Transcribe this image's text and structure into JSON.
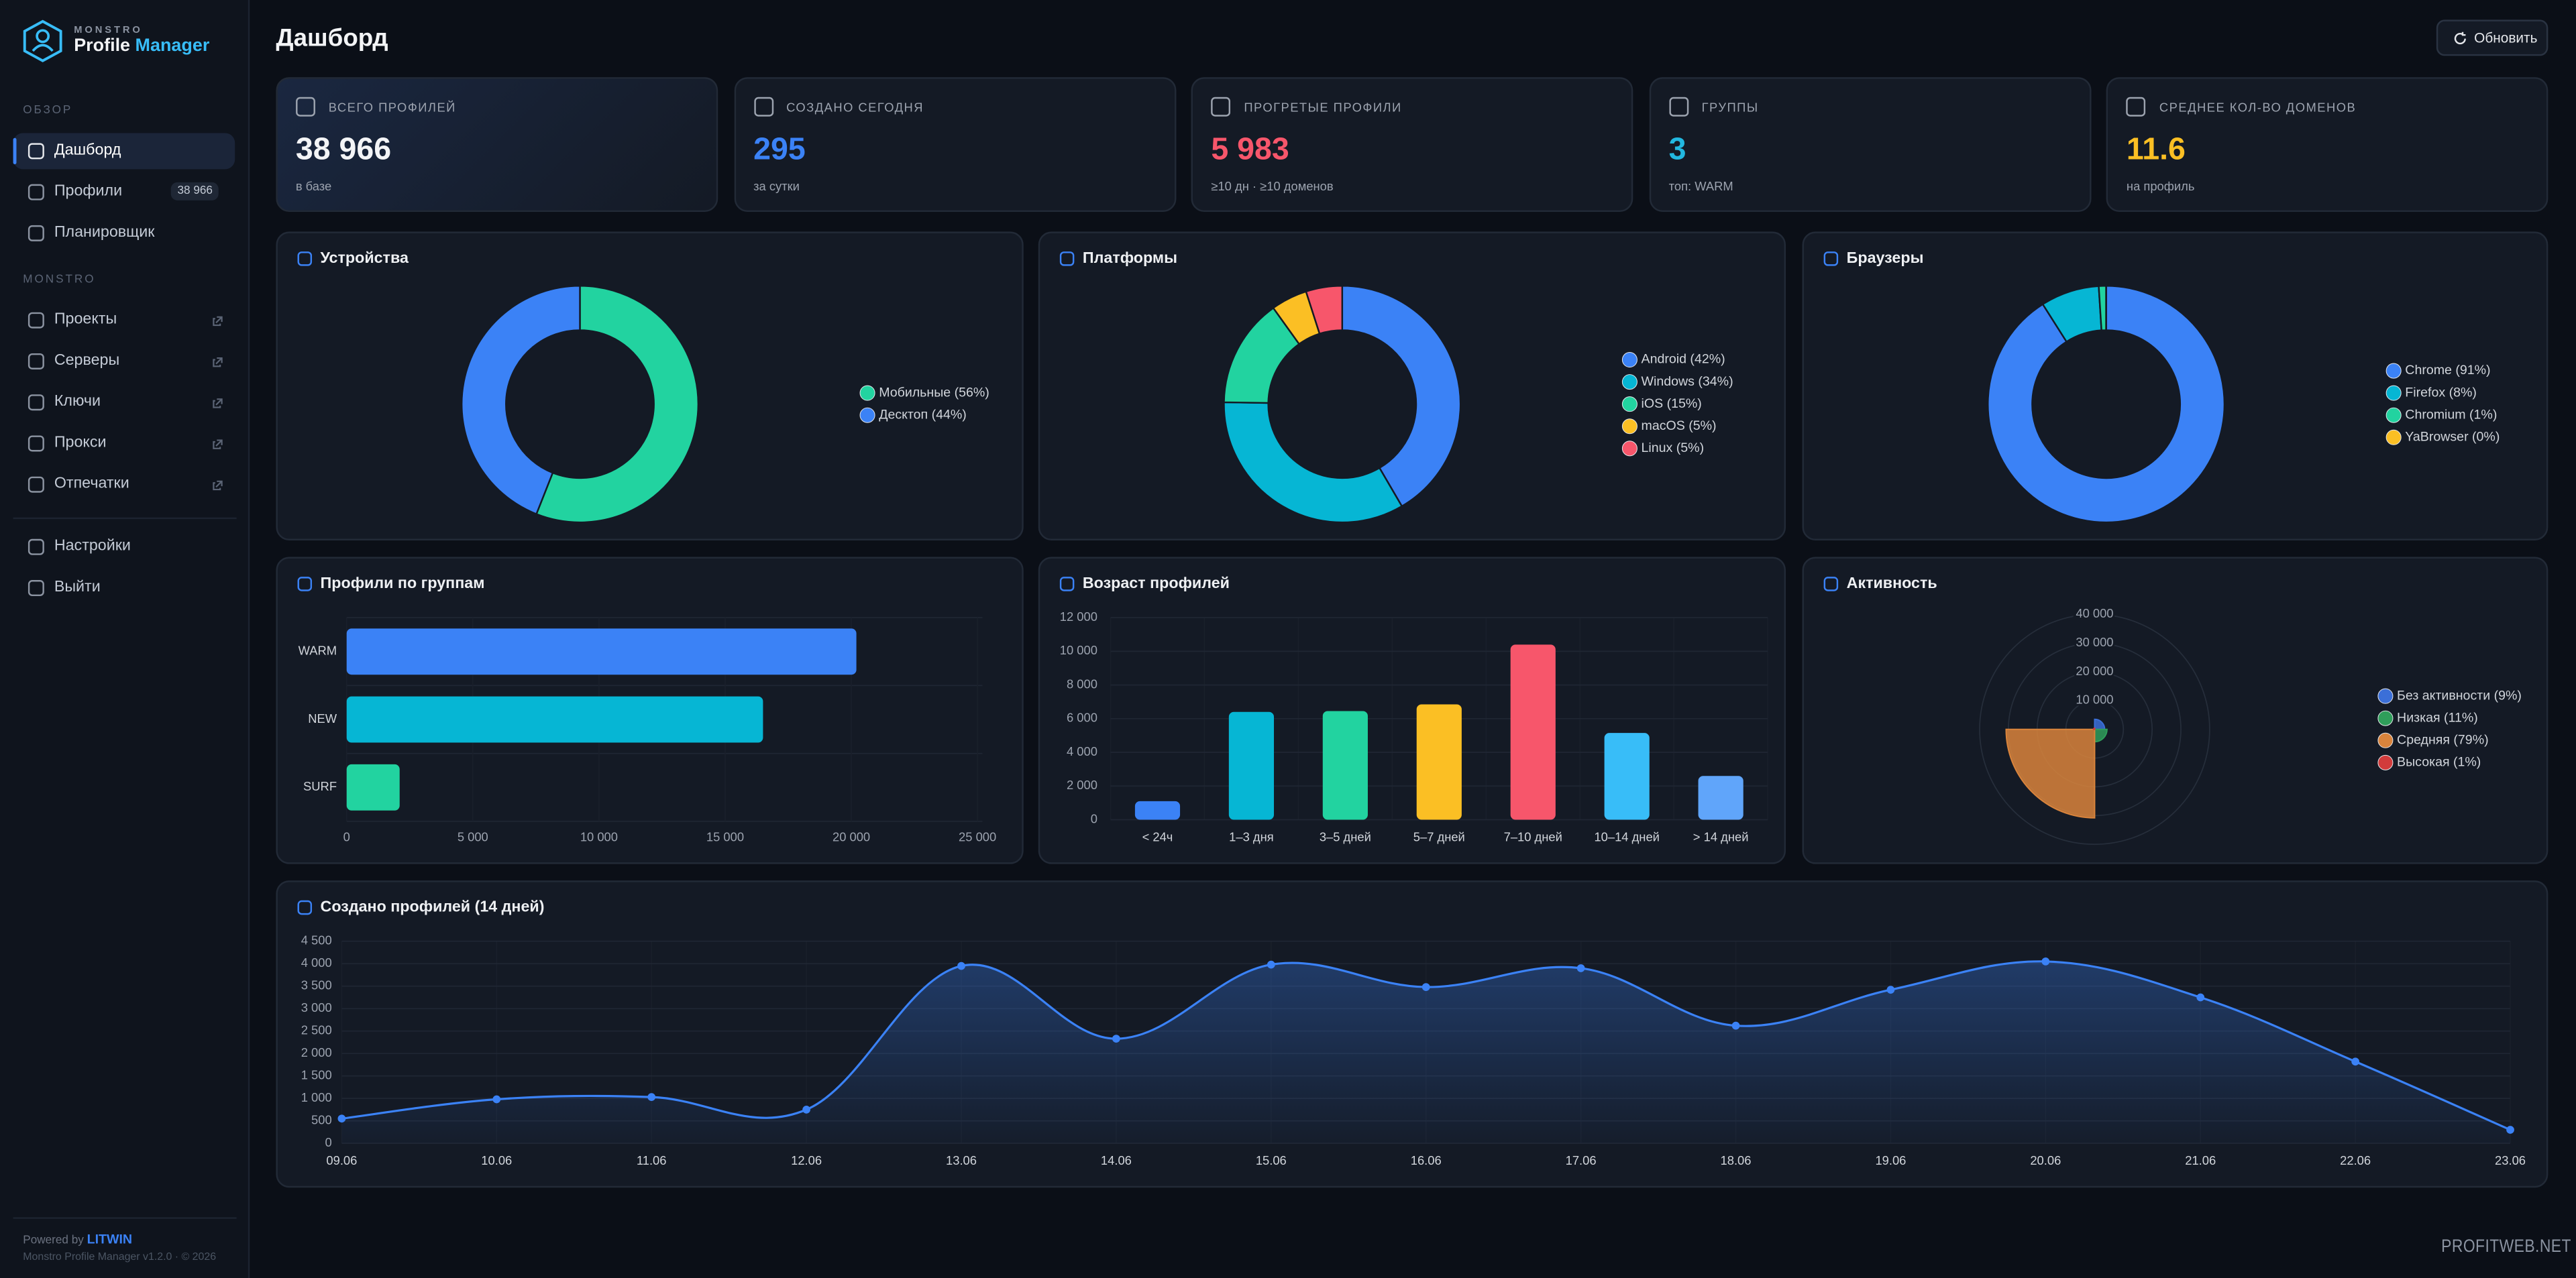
{
  "sidebar": {
    "brand_top": "MONSTRO",
    "brand_a": "Profile",
    "brand_b": "Manager",
    "sections": [
      {
        "title": "ОБЗОР",
        "items": [
          {
            "label": "Дашборд",
            "active": true
          },
          {
            "label": "Профили",
            "badge": "38 966"
          },
          {
            "label": "Планировщик"
          }
        ]
      },
      {
        "title": "MONSTRO",
        "items": [
          {
            "label": "Проекты",
            "external": true
          },
          {
            "label": "Серверы",
            "external": true
          },
          {
            "label": "Ключи",
            "external": true
          },
          {
            "label": "Прокси",
            "external": true
          },
          {
            "label": "Отпечатки",
            "external": true
          }
        ]
      },
      {
        "items": [
          {
            "label": "Настройки"
          },
          {
            "label": "Выйти"
          }
        ]
      }
    ],
    "footer": {
      "powered": "Powered by",
      "brand": "LITWIN",
      "version": "Monstro Profile Manager v1.2.0 · © 2026"
    }
  },
  "header": {
    "title": "Дашборд",
    "refresh": "Обновить"
  },
  "stats": [
    {
      "label": "ВСЕГО ПРОФИЛЕЙ",
      "value": "38 966",
      "sub": "в базе",
      "color": "#f3f4f6"
    },
    {
      "label": "СОЗДАНО СЕГОДНЯ",
      "value": "295",
      "sub": "за сутки",
      "color": "#3b82f6"
    },
    {
      "label": "ПРОГРЕТЫЕ ПРОФИЛИ",
      "value": "5 983",
      "sub": "≥10 дн · ≥10 доменов",
      "color": "#f7566b"
    },
    {
      "label": "ГРУППЫ",
      "value": "3",
      "sub": "топ: WARM",
      "color": "#22b8e0"
    },
    {
      "label": "СРЕДНЕЕ КОЛ-ВО ДОМЕНОВ",
      "value": "11.6",
      "sub": "на профиль",
      "color": "#fbbf24"
    }
  ],
  "chart_data": [
    {
      "type": "donut",
      "title": "Устройства",
      "categories": [
        "Мобильные (56%)",
        "Десктоп (44%)"
      ],
      "values": [
        56,
        44
      ],
      "colors": [
        "#22d3a0",
        "#3b82f6"
      ],
      "legend": "right"
    },
    {
      "type": "donut",
      "title": "Платформы",
      "categories": [
        "Android (42%)",
        "Windows (34%)",
        "iOS (15%)",
        "macOS (5%)",
        "Linux (5%)"
      ],
      "values": [
        42,
        34,
        15,
        5,
        5
      ],
      "colors": [
        "#3b82f6",
        "#06b6d4",
        "#22d3a0",
        "#fbbf24",
        "#f7566b"
      ],
      "legend": "right"
    },
    {
      "type": "donut",
      "title": "Браузеры",
      "categories": [
        "Chrome (91%)",
        "Firefox (8%)",
        "Chromium (1%)",
        "YaBrowser (0%)"
      ],
      "values": [
        91,
        8,
        1,
        0
      ],
      "colors": [
        "#3b82f6",
        "#06b6d4",
        "#22d3a0",
        "#fbbf24"
      ],
      "legend": "right"
    },
    {
      "type": "hbar",
      "title": "Профили по группам",
      "categories": [
        "WARM",
        "NEW",
        "SURF"
      ],
      "values": [
        20200,
        16500,
        2100
      ],
      "colors": [
        "#3b82f6",
        "#06b6d4",
        "#22d3a0"
      ],
      "xlim": [
        0,
        25000
      ],
      "xticks": [
        0,
        {
          "value": 5000,
          "label": "5 000"
        },
        {
          "value": 10000,
          "label": "10 000"
        },
        {
          "value": 15000,
          "label": "15 000"
        },
        {
          "value": 20000,
          "label": "20 000"
        },
        {
          "value": 25000,
          "label": "25 000"
        }
      ],
      "grid": true
    },
    {
      "type": "bar",
      "title": "Возраст профилей",
      "categories": [
        "< 24ч",
        "1–3 дня",
        "3–5 дней",
        "5–7 дней",
        "7–10 дней",
        "10–14 дней",
        "> 14 дней"
      ],
      "values": [
        1100,
        6400,
        6450,
        6850,
        10400,
        5150,
        2600
      ],
      "colors": [
        "#3b82f6",
        "#06b6d4",
        "#22d3a0",
        "#fbbf24",
        "#f7566b",
        "#38bdf8",
        "#60a5fa"
      ],
      "ylim": [
        0,
        12000
      ],
      "yticks": [
        0,
        {
          "value": 2000,
          "label": "2 000"
        },
        {
          "value": 4000,
          "label": "4 000"
        },
        {
          "value": 6000,
          "label": "6 000"
        },
        {
          "value": 8000,
          "label": "8 000"
        },
        {
          "value": 10000,
          "label": "10 000"
        },
        {
          "value": 12000,
          "label": "12 000"
        }
      ],
      "grid": true
    },
    {
      "type": "polar",
      "title": "Активность",
      "categories": [
        "Без активности (9%)",
        "Низкая (11%)",
        "Средняя (79%)",
        "Высокая (1%)"
      ],
      "values": [
        3500,
        4300,
        30800,
        400
      ],
      "colors": [
        "#3b6fd8",
        "#2f9e5a",
        "#d9843c",
        "#d23b3b"
      ],
      "rlim": [
        0,
        40000
      ],
      "rticks": [
        {
          "value": 10000,
          "label": "10 000"
        },
        {
          "value": 20000,
          "label": "20 000"
        },
        {
          "value": 30000,
          "label": "30 000"
        },
        {
          "value": 40000,
          "label": "40 000"
        }
      ],
      "legend": "right"
    },
    {
      "type": "line",
      "title": "Создано профилей (14 дней)",
      "categories": [
        "09.06",
        "10.06",
        "11.06",
        "12.06",
        "13.06",
        "14.06",
        "15.06",
        "16.06",
        "17.06",
        "18.06",
        "19.06",
        "20.06",
        "21.06",
        "22.06",
        "23.06"
      ],
      "values": [
        550,
        980,
        1030,
        750,
        3950,
        2330,
        3980,
        3480,
        3900,
        2620,
        3420,
        4050,
        3250,
        1820,
        300
      ],
      "color": "#3b82f6",
      "ylim": [
        0,
        4500
      ],
      "yticks": [
        0,
        500,
        {
          "value": 1000,
          "label": "1 000"
        },
        {
          "value": 1500,
          "label": "1 500"
        },
        {
          "value": 2000,
          "label": "2 000"
        },
        {
          "value": 2500,
          "label": "2 500"
        },
        {
          "value": 3000,
          "label": "3 000"
        },
        {
          "value": 3500,
          "label": "3 500"
        },
        {
          "value": 4000,
          "label": "4 000"
        },
        {
          "value": 4500,
          "label": "4 500"
        }
      ],
      "grid": true
    }
  ],
  "watermark": "PROFITWEB.NET"
}
